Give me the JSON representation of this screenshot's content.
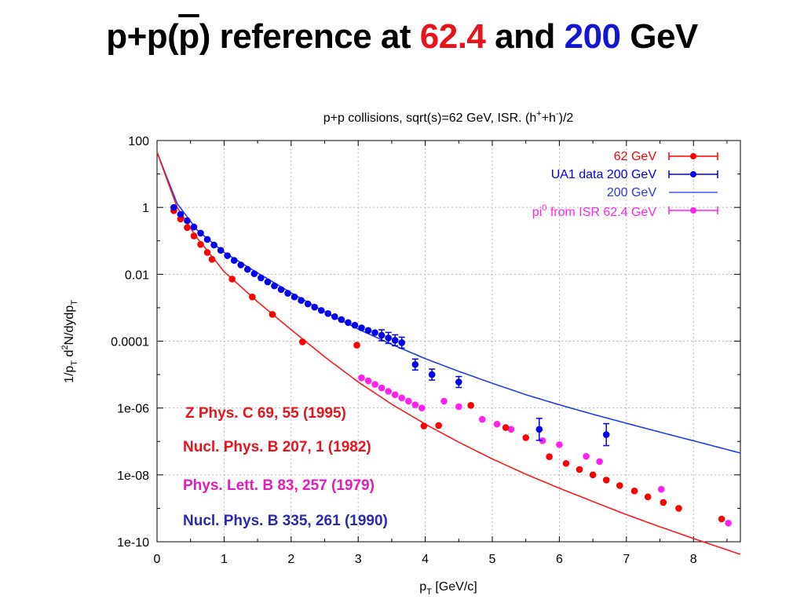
{
  "slide": {
    "title_part1": "p+p(",
    "title_pbar": "p",
    "title_part2": ") reference at ",
    "title_num1": "62.4",
    "title_and": " and ",
    "title_num2": "200",
    "title_unit": " GeV"
  },
  "references": [
    {
      "text": "Z Phys. C 69, 55 (1995)",
      "color": "#e8141c"
    },
    {
      "text": "Nucl. Phys. B 207, 1 (1982)",
      "color": "#e8141c"
    },
    {
      "text": "Phys. Lett. B 83, 257 (1979)",
      "color": "#e31bb8"
    },
    {
      "text": "Nucl. Phys. B 335, 261 (1990)",
      "color": "#2a2ab0"
    }
  ],
  "chart_data": {
    "type": "scatter",
    "title_main": "p+p collisions, sqrt(s)=62 GeV, ISR. (h",
    "title_sup1": "+",
    "title_mid": "+h",
    "title_sup2": "-",
    "title_end": ")/2",
    "xlabel_main": "p",
    "xlabel_sub": "T",
    "xlabel_rest": " [GeV/c]",
    "ylabel_parts": [
      "1/p",
      "T",
      " d",
      "2",
      "N/dydp",
      "T"
    ],
    "xlim": [
      0,
      8.7
    ],
    "ylim": [
      1e-10,
      100
    ],
    "y_scale": "log",
    "grid": true,
    "legend_position": "top-right",
    "x_ticks": [
      "0",
      "1",
      "2",
      "3",
      "4",
      "5",
      "6",
      "7",
      "8"
    ],
    "y_ticks": [
      "1e-10",
      "1e-08",
      "1e-06",
      "0.0001",
      "0.01",
      "1",
      "100"
    ],
    "series": [
      {
        "name": "62 GeV",
        "style": "points-errorbars",
        "color": "#ff0000",
        "points": [
          [
            0.25,
            0.8
          ],
          [
            0.35,
            0.45
          ],
          [
            0.45,
            0.25
          ],
          [
            0.55,
            0.14
          ],
          [
            0.65,
            0.078
          ],
          [
            0.75,
            0.045
          ],
          [
            0.82,
            0.028
          ],
          [
            1.12,
            0.0072
          ],
          [
            1.42,
            0.0021
          ],
          [
            1.72,
            0.00063
          ],
          [
            2.17,
            9.5e-05
          ],
          [
            2.98,
            7.6e-05
          ],
          [
            3.98,
            2.9e-07
          ],
          [
            4.2,
            3e-07
          ],
          [
            4.68,
            1.2e-06
          ],
          [
            5.2,
            2.6e-07
          ],
          [
            5.5,
            1.3e-07
          ],
          [
            5.85,
            3.5e-08
          ],
          [
            6.1,
            2.2e-08
          ],
          [
            6.3,
            1.45e-08
          ],
          [
            6.5,
            1e-08
          ],
          [
            6.7,
            7e-09
          ],
          [
            6.9,
            4.8e-09
          ],
          [
            7.12,
            3.3e-09
          ],
          [
            7.32,
            2.2e-09
          ],
          [
            7.55,
            1.5e-09
          ],
          [
            7.78,
            1e-09
          ],
          [
            8.42,
            4.8e-10
          ]
        ]
      },
      {
        "name": "UA1 data 200 GeV",
        "style": "points-errorbars",
        "color": "#0000ee",
        "points": [
          [
            0.25,
            1.0
          ],
          [
            0.35,
            0.62
          ],
          [
            0.45,
            0.4
          ],
          [
            0.55,
            0.26
          ],
          [
            0.65,
            0.17
          ],
          [
            0.75,
            0.11
          ],
          [
            0.85,
            0.075
          ],
          [
            0.95,
            0.052
          ],
          [
            1.05,
            0.036
          ],
          [
            1.15,
            0.026
          ],
          [
            1.25,
            0.019
          ],
          [
            1.35,
            0.014
          ],
          [
            1.45,
            0.0104
          ],
          [
            1.55,
            0.0078
          ],
          [
            1.65,
            0.0059
          ],
          [
            1.75,
            0.0045
          ],
          [
            1.85,
            0.0035
          ],
          [
            1.95,
            0.0027
          ],
          [
            2.05,
            0.0021
          ],
          [
            2.15,
            0.00165
          ],
          [
            2.25,
            0.0013
          ],
          [
            2.35,
            0.00104
          ],
          [
            2.45,
            0.00083
          ],
          [
            2.55,
            0.00067
          ],
          [
            2.65,
            0.00054
          ],
          [
            2.75,
            0.00044
          ],
          [
            2.85,
            0.00036
          ],
          [
            2.95,
            0.0003
          ],
          [
            3.05,
            0.00025
          ],
          [
            3.15,
            0.00021
          ],
          [
            3.25,
            0.00018
          ],
          [
            3.35,
            0.00015
          ],
          [
            3.45,
            0.000125
          ],
          [
            3.55,
            0.000106
          ],
          [
            3.65,
            9e-05
          ],
          [
            3.85,
            2e-05
          ],
          [
            4.1,
            1e-05
          ],
          [
            4.5,
            6e-06
          ],
          [
            5.7,
            2.3e-07
          ],
          [
            6.7,
            1.6e-07
          ]
        ]
      },
      {
        "name": "200 GeV",
        "style": "line",
        "color": "#2a3ae0"
      },
      {
        "name": "pi0 from ISR 62.4 GeV",
        "name_parts": [
          "pi",
          "0",
          " from ISR 62.4 GeV"
        ],
        "style": "points-errorbars",
        "color": "#ff22ee",
        "points": [
          [
            3.05,
            8e-06
          ],
          [
            3.15,
            6.5e-06
          ],
          [
            3.25,
            5.1e-06
          ],
          [
            3.35,
            4e-06
          ],
          [
            3.45,
            3.15e-06
          ],
          [
            3.55,
            2.5e-06
          ],
          [
            3.65,
            2e-06
          ],
          [
            3.75,
            1.6e-06
          ],
          [
            3.85,
            1.25e-06
          ],
          [
            3.95,
            1e-06
          ],
          [
            4.28,
            1.6e-06
          ],
          [
            4.5,
            1.1e-06
          ],
          [
            4.85,
            4.6e-07
          ],
          [
            5.07,
            3.3e-07
          ],
          [
            5.28,
            2.3e-07
          ],
          [
            5.75,
            1.05e-07
          ],
          [
            6.0,
            8e-08
          ],
          [
            6.4,
            3.6e-08
          ],
          [
            6.6,
            2.5e-08
          ],
          [
            7.52,
            3.7e-09
          ],
          [
            8.52,
            3.6e-10
          ]
        ]
      }
    ]
  }
}
